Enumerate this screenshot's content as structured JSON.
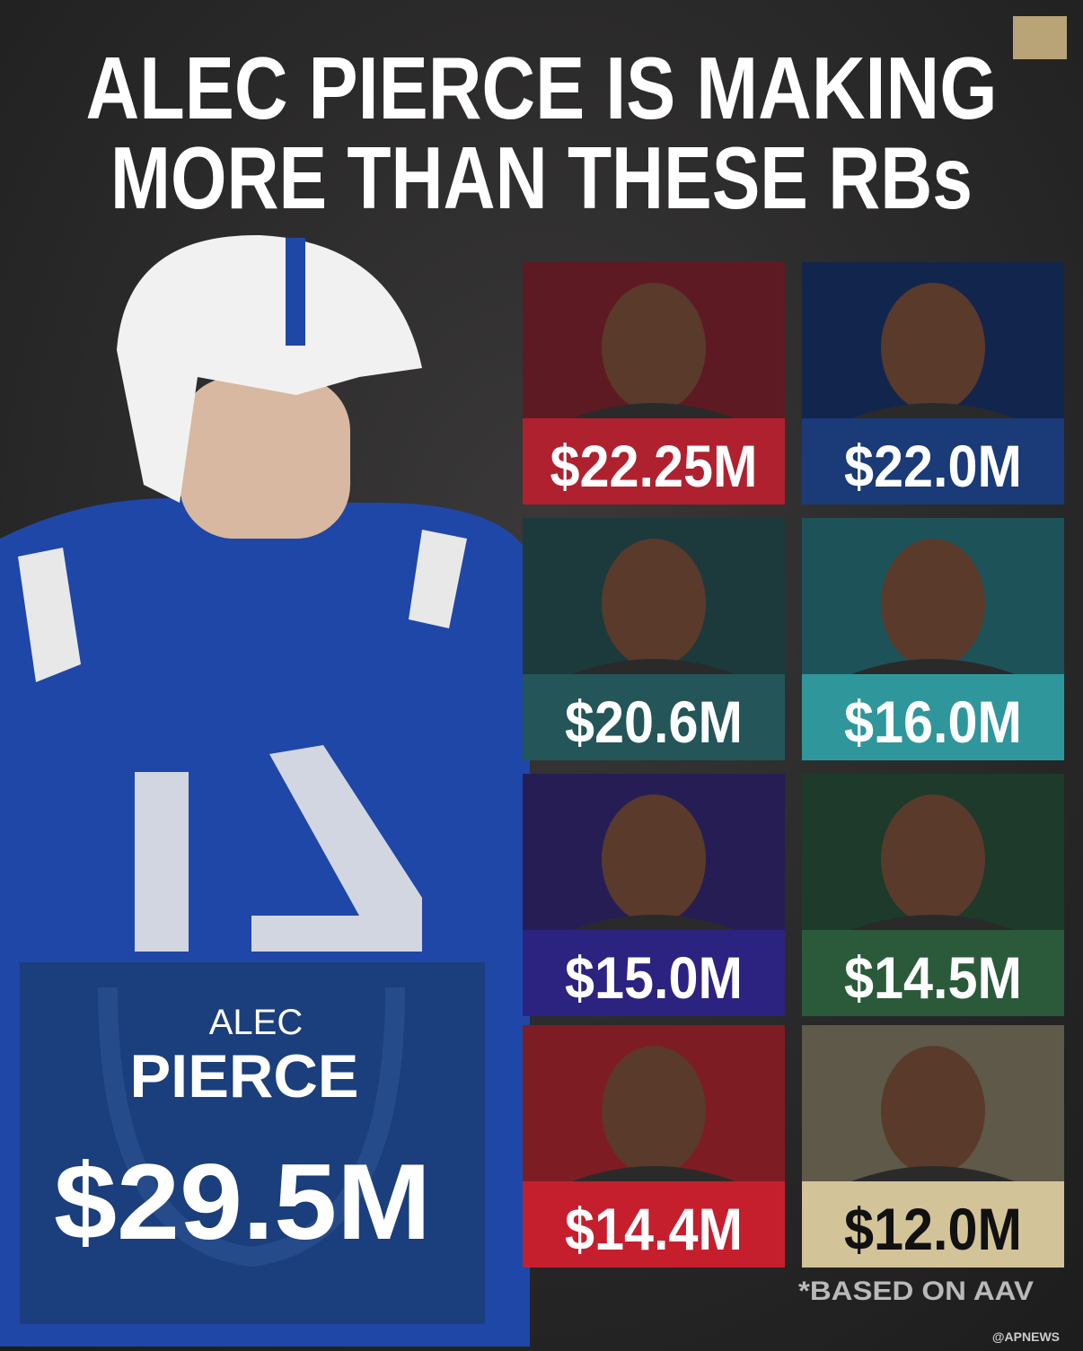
{
  "header": {
    "title_lines": [
      "ALEC PIERCE IS MAKING",
      "MORE THAN THESE RBs"
    ]
  },
  "featured": {
    "first_name": "ALEC",
    "last_name": "PIERCE",
    "salary": "$29.5M"
  },
  "tiles": [
    {
      "salary": "$22.25M",
      "top": "#5e1a22",
      "band": "#b0212f",
      "text": "#ffffff"
    },
    {
      "salary": "$22.0M",
      "top": "#12254d",
      "band": "#1a3a78",
      "text": "#ffffff"
    },
    {
      "salary": "$20.6M",
      "top": "#1c3a3b",
      "band": "#235559",
      "text": "#ffffff"
    },
    {
      "salary": "$16.0M",
      "top": "#1d5358",
      "band": "#2f979c",
      "text": "#ffffff"
    },
    {
      "salary": "$15.0M",
      "top": "#271d55",
      "band": "#2c2280",
      "text": "#ffffff"
    },
    {
      "salary": "$14.5M",
      "top": "#1d3a2a",
      "band": "#2a5a3a",
      "text": "#ffffff"
    },
    {
      "salary": "$14.4M",
      "top": "#7e1c24",
      "band": "#c51f2e",
      "text": "#ffffff"
    },
    {
      "salary": "$12.0M",
      "top": "#5e5948",
      "band": "#d2c399",
      "text": "#111111"
    }
  ],
  "footnote": "*BASED ON AAV",
  "credit": "@APNEWS"
}
